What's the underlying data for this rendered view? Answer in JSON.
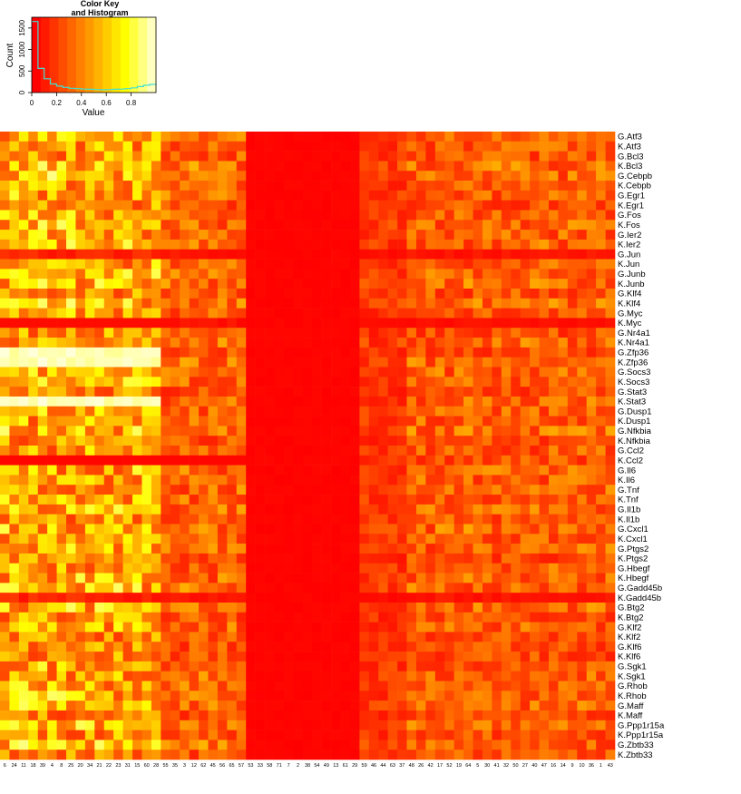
{
  "color_key": {
    "title_line1": "Color Key",
    "title_line2": "and Histogram",
    "xlabel": "Value",
    "ylabel": "Count",
    "x_ticks": [
      "0",
      "0.2",
      "0.4",
      "0.6",
      "0.8"
    ],
    "x_tick_values": [
      0,
      0.2,
      0.4,
      0.6,
      0.8
    ],
    "y_ticks": [
      "0",
      "500",
      "1000",
      "1500"
    ],
    "y_tick_values": [
      0,
      500,
      1000,
      1500
    ],
    "xlim": [
      0,
      1
    ],
    "ylim": [
      0,
      1750
    ],
    "bin_edges": [
      0,
      0.05,
      0.1,
      0.15,
      0.2,
      0.25,
      0.3,
      0.35,
      0.4,
      0.45,
      0.5,
      0.55,
      0.6,
      0.65,
      0.7,
      0.75,
      0.8,
      0.85,
      0.9,
      0.95,
      1.0
    ],
    "counts": [
      1650,
      560,
      320,
      200,
      150,
      120,
      100,
      90,
      80,
      75,
      70,
      65,
      70,
      75,
      80,
      90,
      110,
      140,
      170,
      190
    ],
    "histogram_color": "#40e0d0",
    "palette": [
      "#ff0000",
      "#ff1a00",
      "#ff3300",
      "#ff4d00",
      "#ff6600",
      "#ff8000",
      "#ff9900",
      "#ffb300",
      "#ffcc00",
      "#ffe600",
      "#ffff00",
      "#ffff40",
      "#ffff80",
      "#ffffbf"
    ]
  },
  "chart_data": {
    "type": "heatmap",
    "color_scale": {
      "low": "#ff0000",
      "mid": "#ffff00",
      "high": "#ffffe0",
      "range": [
        0,
        1
      ]
    },
    "column_labels": [
      "6",
      "24",
      "11",
      "18",
      "39",
      "4",
      "8",
      "25",
      "20",
      "34",
      "21",
      "22",
      "23",
      "31",
      "15",
      "60",
      "28",
      "55",
      "35",
      "3",
      "12",
      "62",
      "45",
      "56",
      "65",
      "57",
      "53",
      "33",
      "58",
      "71",
      "7",
      "2",
      "38",
      "54",
      "49",
      "13",
      "61",
      "29",
      "59",
      "46",
      "44",
      "63",
      "37",
      "48",
      "26",
      "42",
      "17",
      "52",
      "19",
      "64",
      "5",
      "30",
      "41",
      "32",
      "50",
      "27",
      "40",
      "47",
      "16",
      "14",
      "9",
      "10",
      "36",
      "1",
      "43"
    ],
    "row_labels": [
      "G.Atf3",
      "K.Atf3",
      "G.Bcl3",
      "K.Bcl3",
      "G.Cebpb",
      "K.Cebpb",
      "G.Egr1",
      "K.Egr1",
      "G.Fos",
      "K.Fos",
      "G.Ier2",
      "K.Ier2",
      "G.Jun",
      "K.Jun",
      "G.Junb",
      "K.Junb",
      "G.Klf4",
      "K.Klf4",
      "G.Myc",
      "K.Myc",
      "G.Nr4a1",
      "K.Nr4a1",
      "G.Zfp36",
      "K.Zfp36",
      "G.Socs3",
      "K.Socs3",
      "G.Stat3",
      "K.Stat3",
      "G.Dusp1",
      "K.Dusp1",
      "G.Nfkbia",
      "K.Nfkbia",
      "G.Ccl2",
      "K.Ccl2",
      "G.Il6",
      "K.Il6",
      "G.Tnf",
      "K.Tnf",
      "G.Il1b",
      "K.Il1b",
      "G.Cxcl1",
      "K.Cxcl1",
      "G.Ptgs2",
      "K.Ptgs2",
      "G.Hbegf",
      "K.Hbegf",
      "G.Gadd45b",
      "K.Gadd45b",
      "G.Btg2",
      "K.Btg2",
      "G.Klf2",
      "K.Klf2",
      "G.Klf6",
      "K.Klf6",
      "G.Sgk1",
      "K.Sgk1",
      "G.Rhob",
      "K.Rhob",
      "G.Maff",
      "K.Maff",
      "G.Ppp1r15a",
      "K.Ppp1r15a",
      "G.Zbtb33",
      "K.Zbtb33"
    ],
    "legend_tick_labels": [
      "0",
      "0.2",
      "0.4",
      "0.6",
      "0.8"
    ]
  }
}
